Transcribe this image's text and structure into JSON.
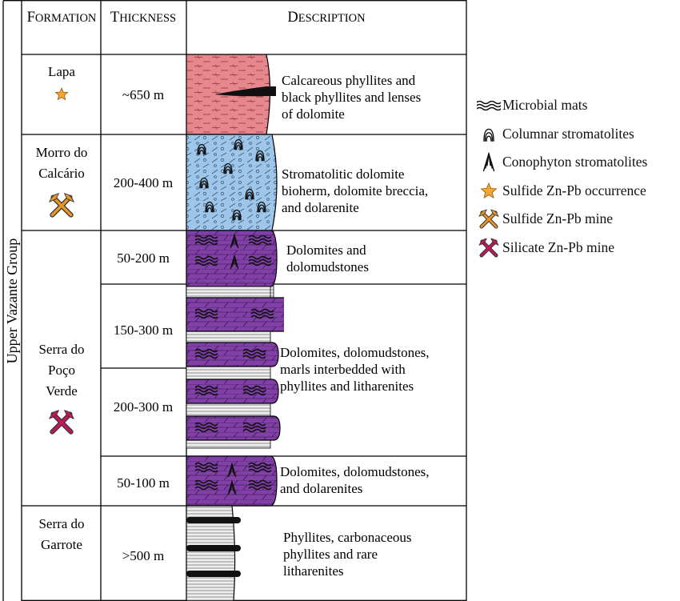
{
  "group_label": "Upper Vazante Group",
  "headers": {
    "formation": "Formation",
    "thickness": "Thickness",
    "description": "Description"
  },
  "formations": [
    {
      "name": [
        "Lapa"
      ],
      "symbol": "star-icon",
      "symbol_color": "#f7a531"
    },
    {
      "name": [
        "Morro do",
        "Calcário"
      ],
      "symbol": "pickaxe-icon",
      "symbol_color": "#e8962b"
    },
    {
      "name": [
        "Serra do",
        "Poço",
        "Verde"
      ],
      "symbol": "pickaxe-icon",
      "symbol_color": "#c2185b"
    },
    {
      "name": [
        "Serra do",
        "Garrote"
      ],
      "symbol": "",
      "symbol_color": ""
    }
  ],
  "units": [
    {
      "thickness": "~650 m",
      "description": [
        "Calcareous phyllites and",
        "black phyllites and lenses",
        "of dolomite"
      ],
      "lithology": "calcareous-phyllite",
      "color": "#e5878d"
    },
    {
      "thickness": "200-400 m",
      "description": [
        "Stromatolitic dolomite",
        "bioherm, dolomite breccia,",
        "and dolarenite"
      ],
      "lithology": "dolomite-breccia-stromatolite",
      "color": "#9ec6e9"
    },
    {
      "thickness": "50-200 m",
      "description": [
        "Dolomites and",
        "dolomudstones"
      ],
      "lithology": "dolomite-microbial",
      "color": "#8040a6"
    },
    {
      "thickness": "150-300 m",
      "description": [
        "Dolomites, dolomudstones,",
        "marls interbedded with",
        "phyllites and litharenites"
      ],
      "lithology": "dolomite-phyllite-interbedded",
      "color": "#8040a6"
    },
    {
      "thickness": "200-300 m",
      "description": [],
      "lithology": "dolomite-phyllite-interbedded",
      "color": "#8040a6"
    },
    {
      "thickness": "50-100 m",
      "description": [
        "Dolomites, dolomudstones,",
        "and dolarenites"
      ],
      "lithology": "dolomite-microbial-stromatolite",
      "color": "#8040a6"
    },
    {
      "thickness": ">500 m",
      "description": [
        "Phyllites, carbonaceous",
        "phyllites and rare",
        "litharenites"
      ],
      "lithology": "phyllite-carbonaceous",
      "color": "#dddddd"
    }
  ],
  "legend": [
    {
      "icon": "microbial-mats-icon",
      "label": "Microbial mats",
      "color": "#111111"
    },
    {
      "icon": "columnar-stromatolite-icon",
      "label": "Columnar stromatolites",
      "color": "#111111"
    },
    {
      "icon": "conophyton-stromatolite-icon",
      "label": "Conophyton stromatolites",
      "color": "#111111"
    },
    {
      "icon": "star-icon",
      "label": "Sulfide Zn-Pb occurrence",
      "color": "#f7a531"
    },
    {
      "icon": "pickaxe-icon",
      "label": "Sulfide Zn-Pb mine",
      "color": "#e8962b"
    },
    {
      "icon": "pickaxe-icon",
      "label": "Silicate Zn-Pb mine",
      "color": "#c2185b"
    }
  ]
}
